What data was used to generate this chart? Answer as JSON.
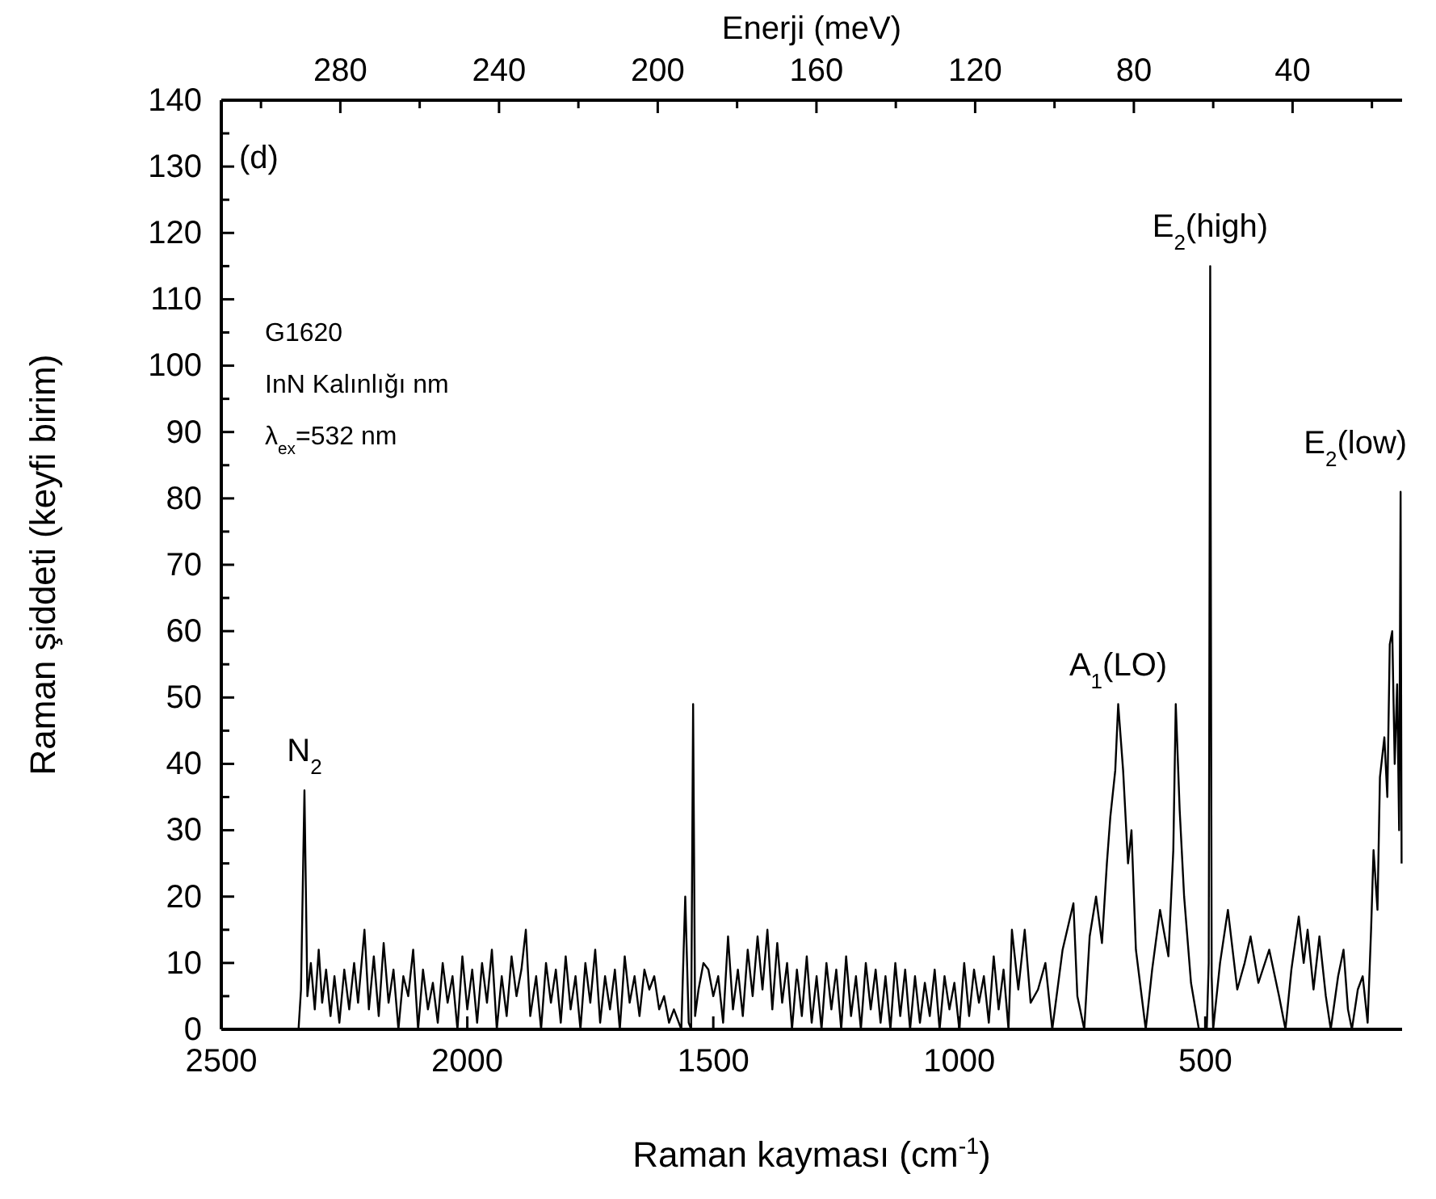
{
  "chart_data": {
    "type": "line",
    "xlabel": "Raman kayması (cm$^{-1}$)",
    "ylabel": "Raman şiddeti (keyfi birim)",
    "x2label": "Enerji (meV)",
    "xlim": [
      2500,
      100
    ],
    "xticks": [
      2500,
      2000,
      1500,
      1000,
      500
    ],
    "x2lim": [
      310,
      12.4
    ],
    "x2ticks": [
      {
        "value": 300,
        "label": null
      },
      280,
      {
        "value": 260,
        "label": null
      },
      240,
      {
        "value": 220,
        "label": null
      },
      200,
      {
        "value": 180,
        "label": null
      },
      160,
      {
        "value": 140,
        "label": null
      },
      120,
      {
        "value": 100,
        "label": null
      },
      80,
      {
        "value": 60,
        "label": null
      },
      40,
      {
        "value": 20,
        "label": null
      }
    ],
    "ylim": [
      0,
      140
    ],
    "yticks": [
      0,
      {
        "value": 5,
        "label": null
      },
      10,
      {
        "value": 15,
        "label": null
      },
      20,
      {
        "value": 25,
        "label": null
      },
      30,
      {
        "value": 35,
        "label": null
      },
      40,
      {
        "value": 45,
        "label": null
      },
      50,
      {
        "value": 55,
        "label": null
      },
      60,
      {
        "value": 65,
        "label": null
      },
      70,
      {
        "value": 75,
        "label": null
      },
      80,
      {
        "value": 85,
        "label": null
      },
      90,
      {
        "value": 95,
        "label": null
      },
      100,
      {
        "value": 105,
        "label": null
      },
      110,
      {
        "value": 115,
        "label": null
      },
      120,
      {
        "value": 125,
        "label": null
      },
      130,
      {
        "value": 135,
        "label": null
      },
      140
    ],
    "grid": false,
    "marker": "none",
    "line_style": "solid",
    "annotations": [
      "(d)",
      "G1620",
      "InN Kalınlığı nm",
      "λ$_{ex}$=532 nm",
      {
        "text": "N$_{2}$",
        "x": 2331,
        "y": 36
      },
      {
        "text": "A$_{1}$(LO)",
        "x": 677,
        "y": 49
      },
      {
        "text": "E$_{2}$(high)",
        "x": 490,
        "y": 115
      },
      {
        "text": "E$_{2}$(low)",
        "x": 103,
        "y": 81
      }
    ],
    "series": [
      {
        "color": "#000000",
        "x": [
          2343,
          2338,
          2331,
          2325,
          2318,
          2310,
          2302,
          2295,
          2287,
          2278,
          2270,
          2260,
          2250,
          2240,
          2230,
          2222,
          2209,
          2200,
          2190,
          2180,
          2170,
          2160,
          2150,
          2140,
          2130,
          2120,
          2110,
          2100,
          2090,
          2080,
          2070,
          2060,
          2050,
          2040,
          2030,
          2020,
          2010,
          2000,
          1990,
          1980,
          1970,
          1960,
          1950,
          1940,
          1930,
          1920,
          1910,
          1900,
          1890,
          1881,
          1872,
          1860,
          1850,
          1840,
          1830,
          1820,
          1810,
          1800,
          1790,
          1780,
          1770,
          1760,
          1750,
          1740,
          1730,
          1720,
          1710,
          1700,
          1690,
          1680,
          1670,
          1660,
          1650,
          1640,
          1630,
          1620,
          1610,
          1600,
          1590,
          1580,
          1565,
          1557,
          1550,
          1545,
          1541,
          1537,
          1530,
          1520,
          1510,
          1500,
          1490,
          1480,
          1470,
          1460,
          1450,
          1440,
          1430,
          1420,
          1410,
          1400,
          1390,
          1380,
          1370,
          1360,
          1350,
          1340,
          1330,
          1320,
          1310,
          1300,
          1290,
          1280,
          1270,
          1260,
          1250,
          1240,
          1230,
          1220,
          1210,
          1200,
          1190,
          1180,
          1170,
          1160,
          1150,
          1140,
          1130,
          1120,
          1110,
          1100,
          1090,
          1080,
          1070,
          1060,
          1050,
          1040,
          1030,
          1020,
          1010,
          1000,
          990,
          980,
          970,
          960,
          950,
          940,
          930,
          920,
          910,
          900,
          893,
          880,
          867,
          855,
          840,
          825,
          811,
          790,
          768,
          760,
          746,
          735,
          722,
          710,
          700,
          693,
          683,
          677,
          667,
          657,
          650,
          641,
          621,
          608,
          592,
          575,
          565,
          560,
          552,
          543,
          529,
          513,
          497,
          493,
          490,
          487,
          484,
          470,
          454,
          435,
          420,
          408,
          392,
          370,
          350,
          337,
          325,
          310,
          300,
          292,
          280,
          268,
          255,
          245,
          230,
          219,
          210,
          202,
          190,
          180,
          170,
          163,
          158,
          150,
          145,
          136,
          130,
          125,
          120,
          115,
          110,
          106,
          103,
          101
        ],
        "values": [
          0,
          6,
          36,
          5,
          10,
          3,
          12,
          4,
          9,
          2,
          8,
          1,
          9,
          3,
          10,
          4,
          15,
          3,
          11,
          2,
          13,
          4,
          9,
          0,
          8,
          5,
          12,
          0,
          9,
          3,
          7,
          1,
          10,
          4,
          8,
          0,
          11,
          3,
          9,
          1,
          10,
          4,
          12,
          0,
          8,
          2,
          11,
          5,
          9,
          15,
          2,
          8,
          0,
          10,
          4,
          9,
          1,
          11,
          3,
          8,
          0,
          10,
          4,
          12,
          1,
          8,
          3,
          9,
          0,
          11,
          4,
          8,
          2,
          9,
          6,
          8,
          3,
          5,
          1,
          3,
          0,
          20,
          1,
          0,
          49,
          2,
          6,
          10,
          9,
          5,
          8,
          1,
          14,
          3,
          9,
          2,
          12,
          5,
          14,
          6,
          15,
          3,
          13,
          4,
          10,
          0,
          9,
          2,
          11,
          1,
          8,
          0,
          10,
          3,
          9,
          0,
          11,
          2,
          8,
          0,
          10,
          3,
          9,
          1,
          8,
          0,
          10,
          2,
          9,
          0,
          8,
          1,
          7,
          2,
          9,
          0,
          8,
          3,
          7,
          0,
          10,
          2,
          9,
          4,
          8,
          1,
          11,
          3,
          9,
          0,
          15,
          6,
          15,
          4,
          6,
          10,
          0,
          12,
          19,
          5,
          0,
          14,
          20,
          13,
          25,
          32,
          39,
          49,
          39,
          25,
          30,
          12,
          0,
          9,
          18,
          11,
          27,
          49,
          33,
          20,
          7,
          0,
          0,
          10,
          115,
          8,
          0,
          10,
          18,
          6,
          10,
          14,
          7,
          12,
          5,
          0,
          9,
          17,
          10,
          15,
          6,
          14,
          5,
          0,
          8,
          12,
          3,
          0,
          6,
          8,
          1,
          15,
          27,
          18,
          38,
          44,
          35,
          58,
          60,
          40,
          52,
          30,
          81,
          25
        ]
      }
    ]
  }
}
